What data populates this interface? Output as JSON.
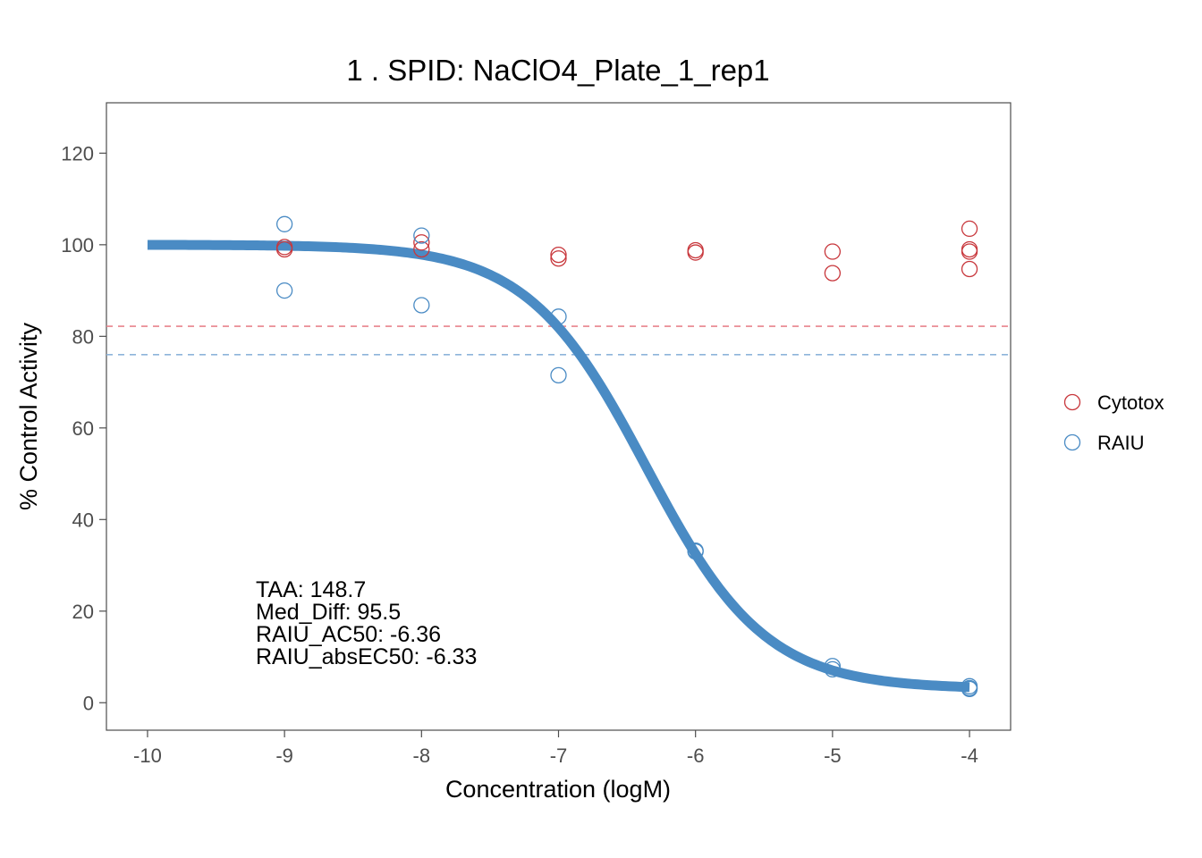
{
  "chart_data": {
    "type": "scatter",
    "title": "1 . SPID: NaClO4_Plate_1_rep1",
    "xlabel": "Concentration (logM)",
    "ylabel": "% Control Activity",
    "xlim": [
      -10.3,
      -3.7
    ],
    "ylim": [
      -6,
      131
    ],
    "x_ticks": [
      -10,
      -9,
      -8,
      -7,
      -6,
      -5,
      -4
    ],
    "x_tick_labels": [
      "-10",
      "-9",
      "-8",
      "-7",
      "-6",
      "-5",
      "-4"
    ],
    "y_ticks": [
      0,
      20,
      40,
      60,
      80,
      100,
      120
    ],
    "y_tick_labels": [
      "0",
      "20",
      "40",
      "60",
      "80",
      "100",
      "120"
    ],
    "grid": false,
    "legend_position": "right",
    "series": [
      {
        "name": "Cytotox",
        "color": "#c8373c",
        "points": [
          [
            -9,
            99.5
          ],
          [
            -9,
            99.0
          ],
          [
            -8,
            100.5
          ],
          [
            -8,
            99.0
          ],
          [
            -7,
            97.8
          ],
          [
            -7,
            97.0
          ],
          [
            -6,
            98.8
          ],
          [
            -6,
            98.3
          ],
          [
            -5,
            98.5
          ],
          [
            -5,
            93.8
          ],
          [
            -4,
            103.5
          ],
          [
            -4,
            99.0
          ],
          [
            -4,
            98.5
          ],
          [
            -4,
            94.7
          ]
        ]
      },
      {
        "name": "RAIU",
        "color": "#4a8bc4",
        "points": [
          [
            -9,
            104.5
          ],
          [
            -9,
            90.0
          ],
          [
            -8,
            102.0
          ],
          [
            -8,
            86.8
          ],
          [
            -7,
            84.3
          ],
          [
            -7,
            71.5
          ],
          [
            -6,
            33.2
          ],
          [
            -6,
            33.0
          ],
          [
            -5,
            8.0
          ],
          [
            -5,
            7.3
          ],
          [
            -4,
            3.6
          ],
          [
            -4,
            3.2
          ],
          [
            -4,
            3.0
          ]
        ]
      }
    ],
    "fit_curve": {
      "series": "RAIU",
      "color": "#4a8bc4",
      "top": 100,
      "bottom": 3,
      "ac50": -6.36,
      "hill": 1.0,
      "x_range": [
        -10,
        -4
      ]
    },
    "reference_lines": [
      {
        "series": "Cytotox",
        "y": 82.2,
        "color": "#e8848c"
      },
      {
        "series": "RAIU",
        "y": 76.0,
        "color": "#8db4da"
      }
    ],
    "annotations": [
      "TAA: 148.7",
      "Med_Diff: 95.5",
      "RAIU_AC50: -6.36",
      "RAIU_absEC50: -6.33"
    ]
  }
}
